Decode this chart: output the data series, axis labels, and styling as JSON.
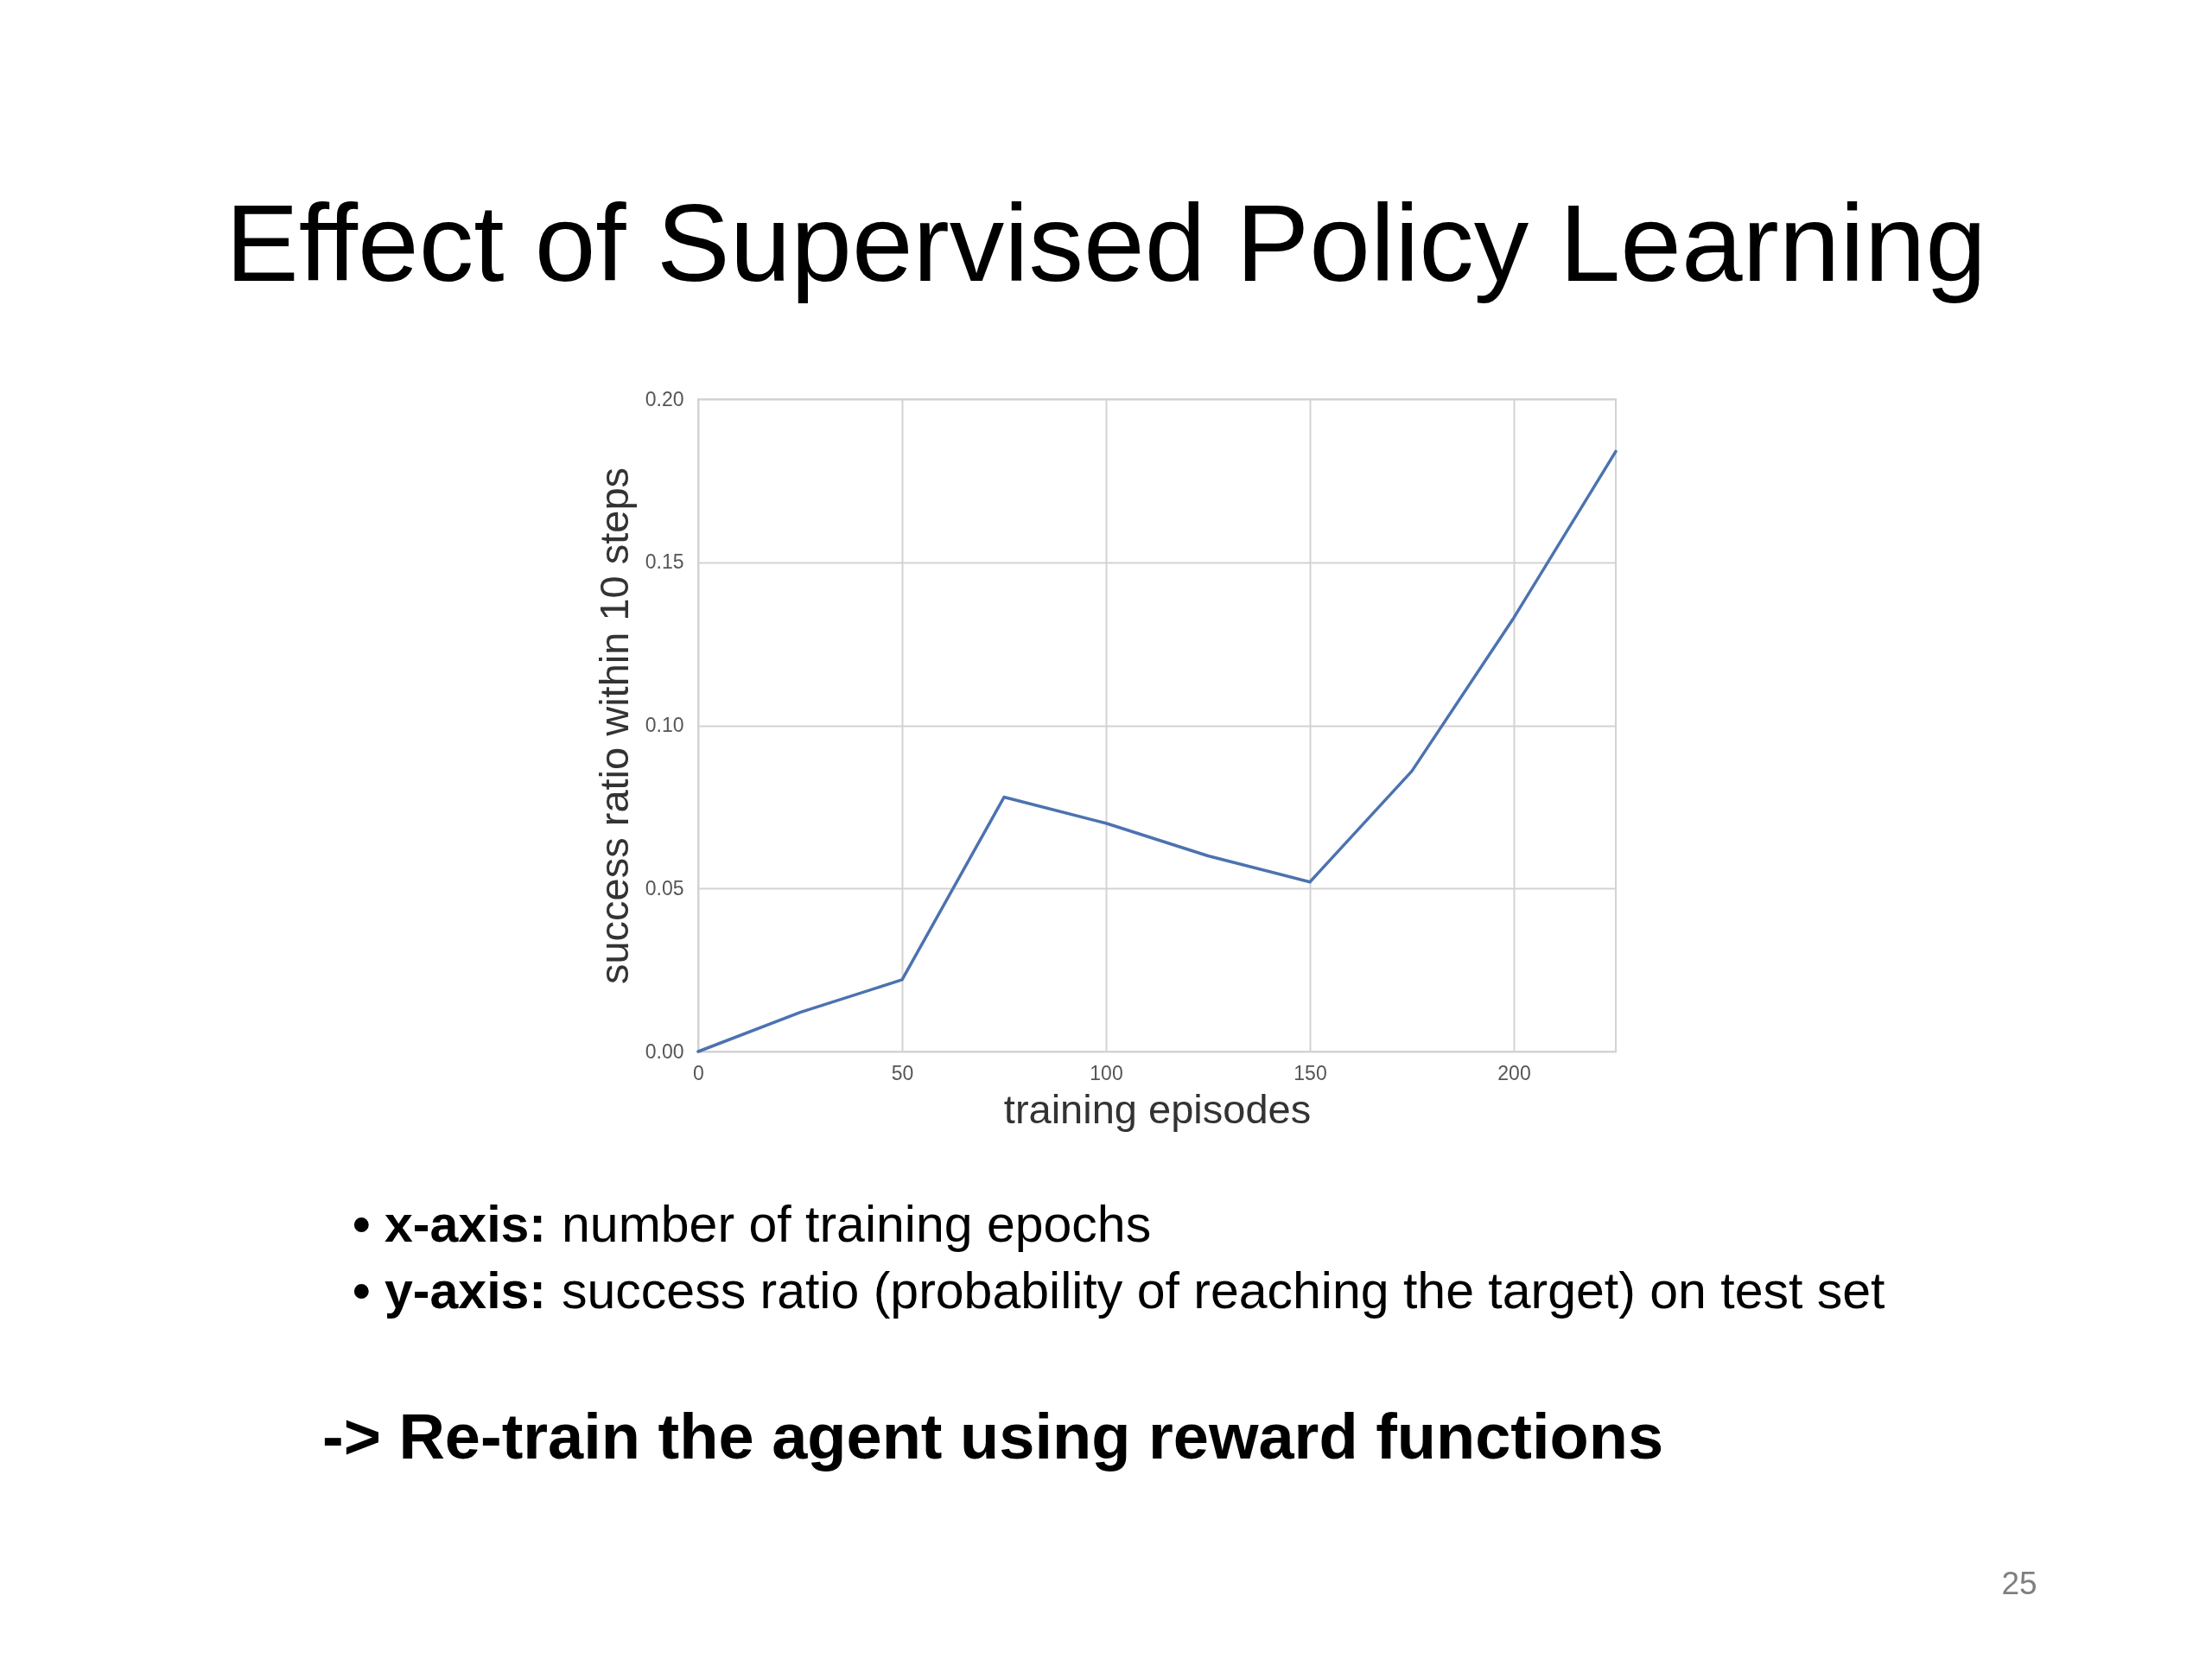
{
  "chart_data": {
    "type": "line",
    "title": "Effect of Supervised Policy Learning",
    "xlabel": "training episodes",
    "ylabel": "success ratio within 10 steps",
    "x": [
      0,
      25,
      50,
      75,
      100,
      125,
      150,
      175,
      200,
      225
    ],
    "series": [
      {
        "color": "#4c72b0",
        "values": [
          0.0,
          0.012,
          0.022,
          0.078,
          0.07,
          0.06,
          0.052,
          0.086,
          0.133,
          0.184
        ]
      }
    ],
    "xlim": [
      0,
      225
    ],
    "xticks": [
      0,
      50,
      100,
      150,
      200
    ],
    "ylim": [
      0,
      0.2
    ],
    "yticks": [
      {
        "value": 0,
        "label": "0.00"
      },
      0.05,
      {
        "value": 0.1,
        "label": "0.10"
      },
      0.15,
      {
        "value": 0.2,
        "label": "0.20"
      }
    ],
    "grid": true,
    "line_style": "solid",
    "annotations": [
      "• x-axis:  number of training epochs",
      "• y-axis:  success ratio (probability of reaching the target) on test set",
      "-> Re-train the agent using reward functions",
      "25"
    ]
  }
}
